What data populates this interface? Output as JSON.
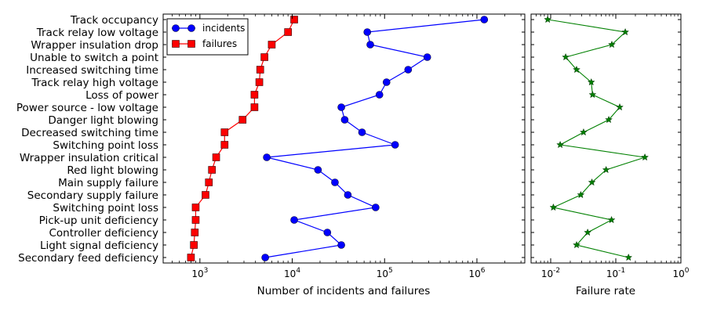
{
  "chart_data": [
    {
      "type": "line",
      "xscale": "log",
      "xlabel": "Number of incidents and failures",
      "xlim": [
        400,
        3300000
      ],
      "xticks": [
        {
          "value": 1000,
          "base": "10",
          "exp": "3"
        },
        {
          "value": 10000,
          "base": "10",
          "exp": "4"
        },
        {
          "value": 100000,
          "base": "10",
          "exp": "5"
        },
        {
          "value": 1000000,
          "base": "10",
          "exp": "6"
        }
      ],
      "categories": [
        "Track occupancy",
        "Track relay low voltage",
        "Wrapper insulation drop",
        "Unable to switch a point",
        "Increased switching time",
        "Track relay high voltage",
        "Loss of power",
        "Power source - low voltage",
        "Danger light blowing",
        "Decreased switching time",
        "Switching point loss",
        "Wrapper insulation critical",
        "Red light blowing",
        "Main supply failure",
        "Secondary supply failure",
        "Switching point loss",
        "Pick-up unit deficiency",
        "Controller deficiency",
        "Light signal deficiency",
        "Secondary feed deficiency"
      ],
      "legend_position": "top-left",
      "series": [
        {
          "name": "incidents",
          "color": "#0000ff",
          "marker": "circle",
          "values": [
            1200000,
            65000,
            70000,
            290000,
            180000,
            105000,
            88000,
            34000,
            37000,
            57000,
            130000,
            5300,
            19000,
            29000,
            40000,
            80000,
            10500,
            24000,
            34000,
            5100
          ]
        },
        {
          "name": "failures",
          "color": "#ff0000",
          "marker": "square",
          "values": [
            10500,
            9000,
            6000,
            5000,
            4500,
            4400,
            3900,
            3900,
            2900,
            1850,
            1850,
            1500,
            1350,
            1250,
            1150,
            900,
            900,
            880,
            860,
            800
          ]
        }
      ]
    },
    {
      "type": "line",
      "xscale": "log",
      "xlabel": "Failure rate",
      "xlim": [
        0.005,
        1
      ],
      "xticks": [
        {
          "value": 0.01,
          "base": "10",
          "exp": "-2"
        },
        {
          "value": 0.1,
          "base": "10",
          "exp": "-1"
        },
        {
          "value": 1,
          "base": "10",
          "exp": "0"
        }
      ],
      "series": [
        {
          "name": "",
          "color": "#008000",
          "marker": "star",
          "values": [
            0.009,
            0.14,
            0.087,
            0.017,
            0.025,
            0.042,
            0.044,
            0.115,
            0.078,
            0.032,
            0.014,
            0.28,
            0.071,
            0.043,
            0.029,
            0.011,
            0.086,
            0.037,
            0.025,
            0.157
          ]
        }
      ]
    }
  ]
}
